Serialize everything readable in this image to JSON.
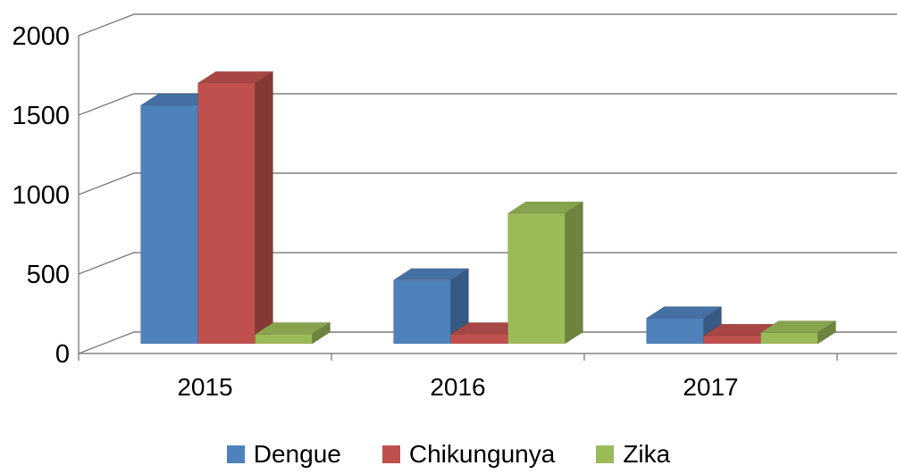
{
  "chart_data": {
    "type": "bar",
    "subtype": "3d-column",
    "title": "",
    "categories": [
      "2015",
      "2016",
      "2017"
    ],
    "series": [
      {
        "name": "Dengue",
        "color": "#4f81bd",
        "values": [
          1500,
          400,
          160
        ]
      },
      {
        "name": "Chikungunya",
        "color": "#c0504d",
        "values": [
          1640,
          60,
          50
        ]
      },
      {
        "name": "Zika",
        "color": "#9bbb59",
        "values": [
          60,
          820,
          70
        ]
      }
    ],
    "y_ticks": [
      0,
      500,
      1000,
      1500,
      2000
    ],
    "ylim": [
      0,
      2000
    ],
    "xlabel": "",
    "ylabel": "",
    "grid": true,
    "legend_position": "bottom"
  },
  "styles": {
    "grid_color": "#808080",
    "axis_color": "#808080",
    "text_color": "#000000",
    "background": "#ffffff"
  }
}
